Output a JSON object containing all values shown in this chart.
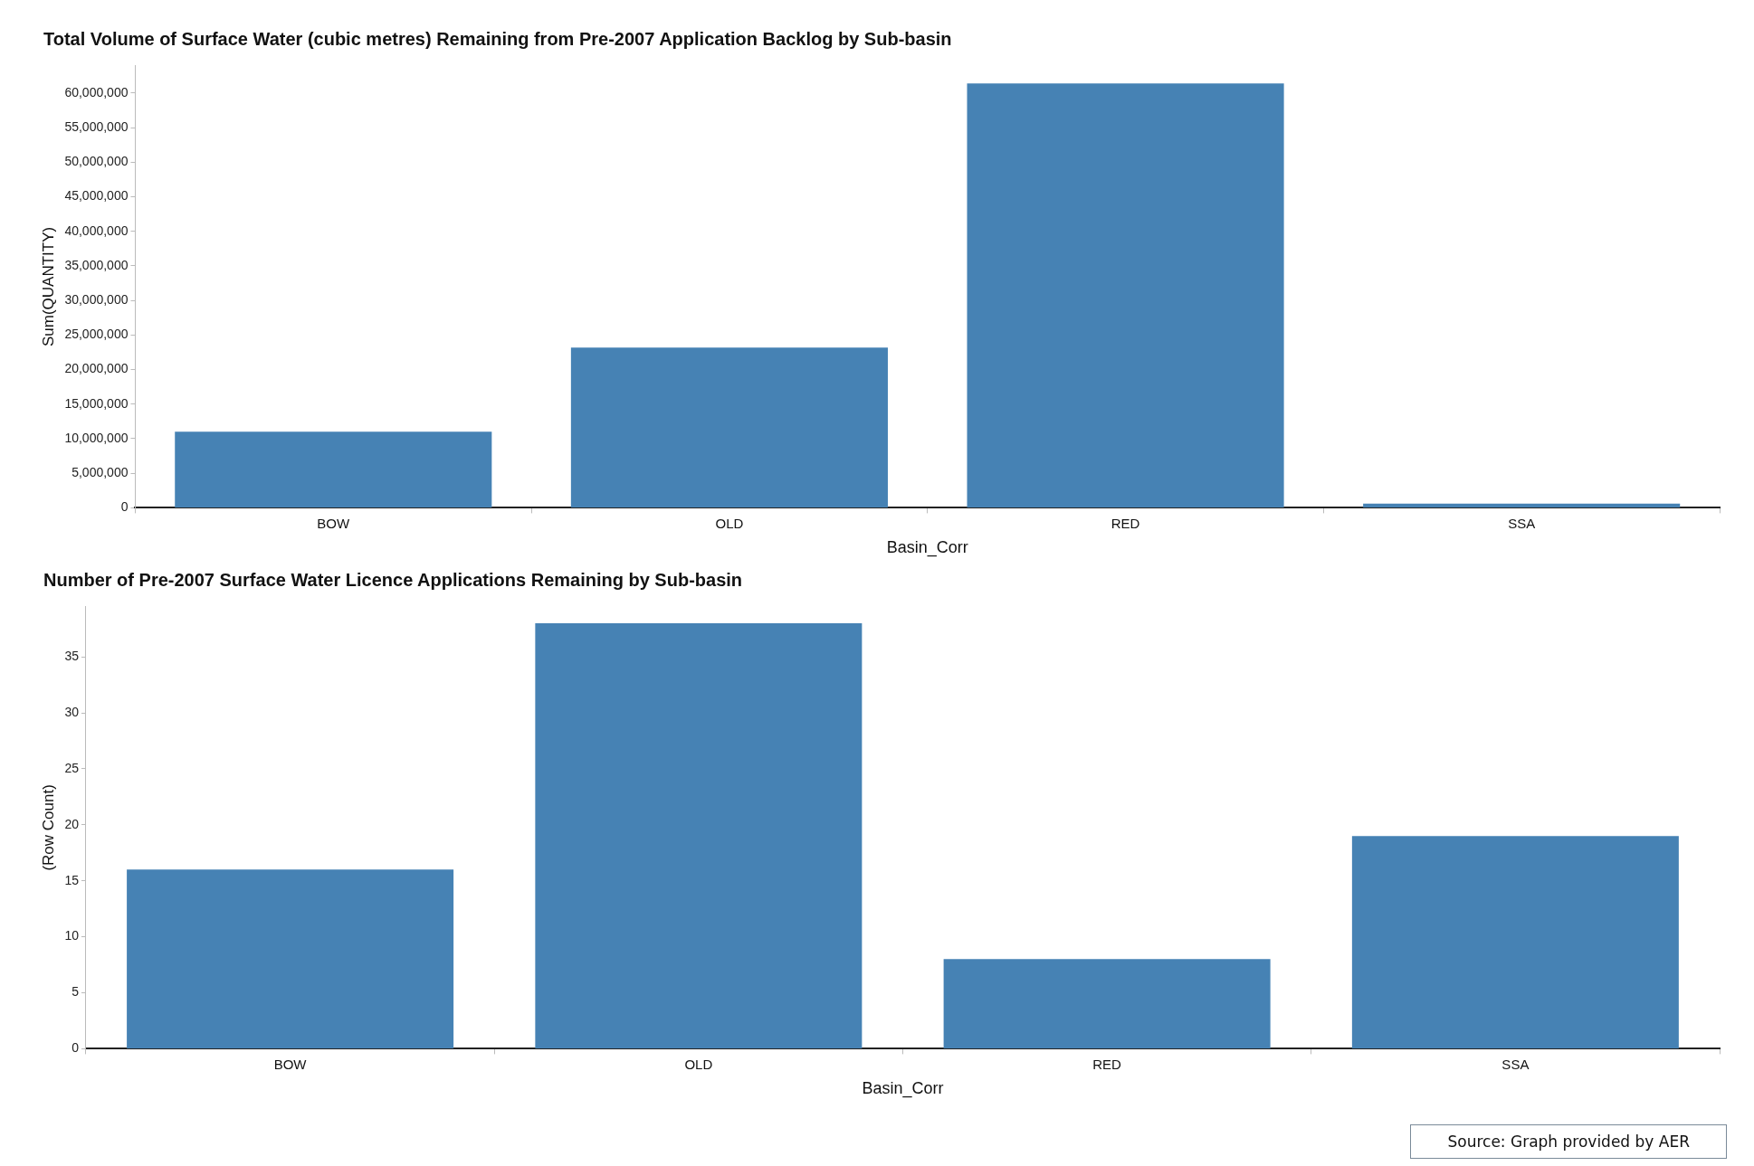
{
  "chart_data": [
    {
      "type": "bar",
      "title": "Total Volume of Surface Water (cubic metres) Remaining from Pre-2007 Application Backlog by Sub-basin",
      "xlabel": "Basin_Corr",
      "ylabel": "Sum(QUANTITY)",
      "categories": [
        "BOW",
        "OLD",
        "RED",
        "SSA"
      ],
      "values": [
        11000000,
        23200000,
        61400000,
        600000
      ],
      "color": "#4682b4",
      "ylim": [
        0,
        64000000
      ],
      "yticks": [
        0,
        {
          "value": 5000000,
          "label": "5,000,000"
        },
        {
          "value": 10000000,
          "label": "10,000,000"
        },
        {
          "value": 15000000,
          "label": "15,000,000"
        },
        {
          "value": 20000000,
          "label": "20,000,000"
        },
        {
          "value": 25000000,
          "label": "25,000,000"
        },
        {
          "value": 30000000,
          "label": "30,000,000"
        },
        {
          "value": 35000000,
          "label": "35,000,000"
        },
        {
          "value": 40000000,
          "label": "40,000,000"
        },
        {
          "value": 45000000,
          "label": "45,000,000"
        },
        {
          "value": 50000000,
          "label": "50,000,000"
        },
        {
          "value": 55000000,
          "label": "55,000,000"
        },
        {
          "value": 60000000,
          "label": "60,000,000"
        }
      ],
      "grid": false
    },
    {
      "type": "bar",
      "title": "Number of Pre-2007 Surface Water Licence Applications Remaining by Sub-basin",
      "xlabel": "Basin_Corr",
      "ylabel": "(Row Count)",
      "categories": [
        "BOW",
        "OLD",
        "RED",
        "SSA"
      ],
      "values": [
        16,
        38,
        8,
        19
      ],
      "color": "#4682b4",
      "ylim": [
        0,
        39.5
      ],
      "yticks": [
        0,
        5,
        10,
        15,
        20,
        25,
        30,
        35
      ],
      "grid": false,
      "annotations": [
        "Source: Graph provided by AER"
      ]
    }
  ]
}
